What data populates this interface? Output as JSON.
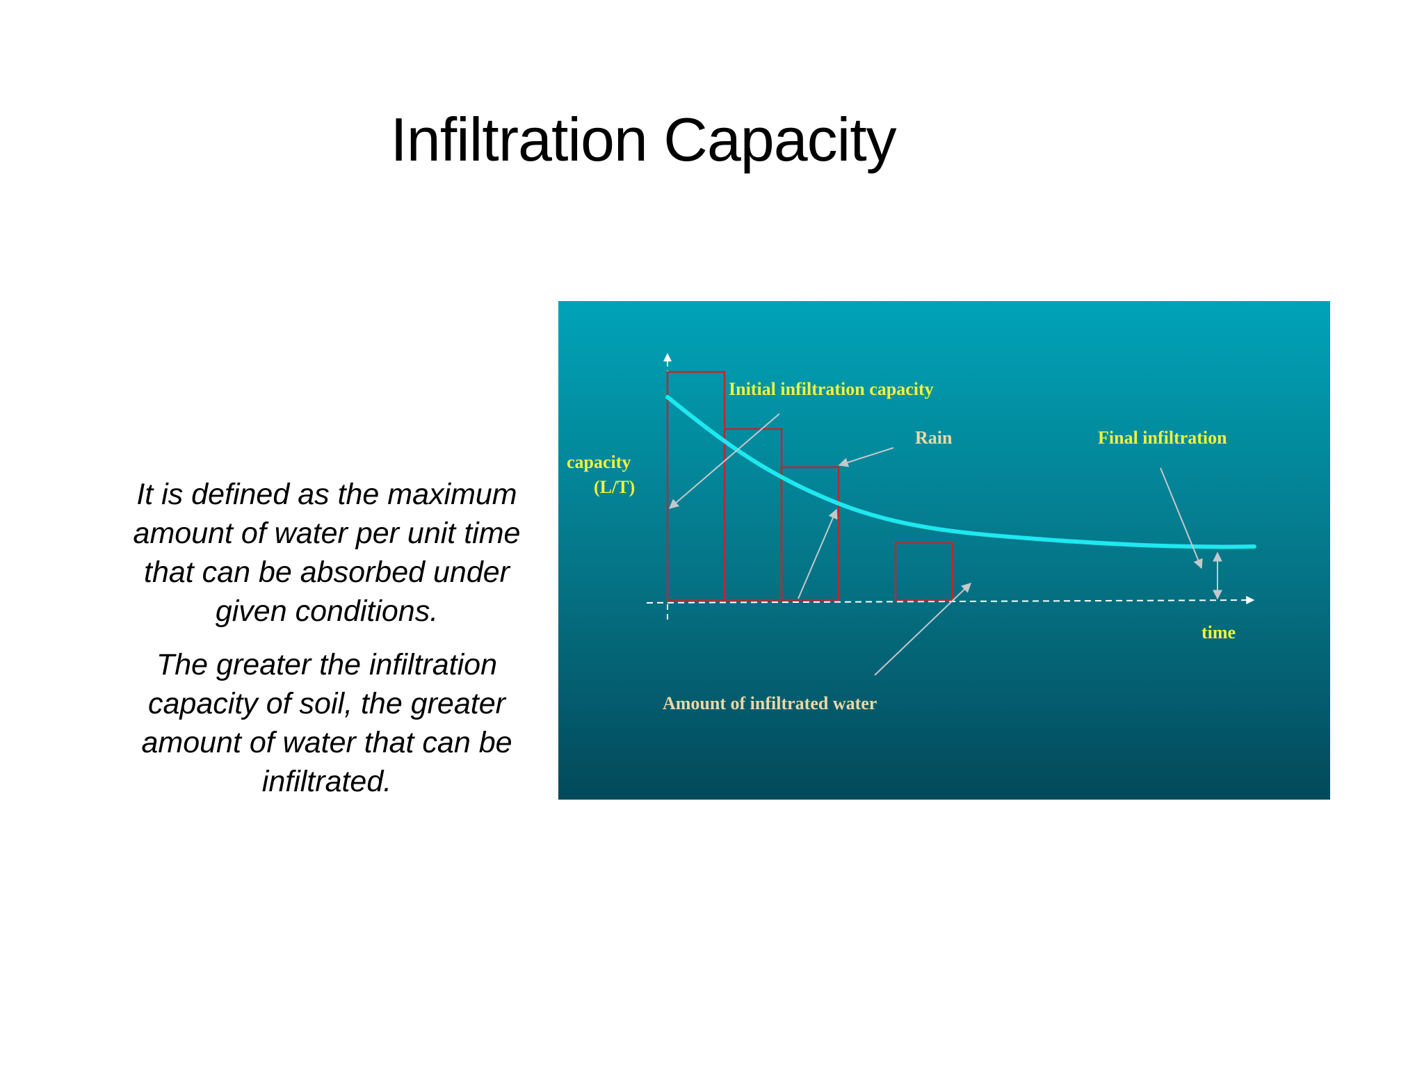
{
  "slide": {
    "title": "Infiltration Capacity",
    "paragraphs": [
      "It is defined as the maximum amount of water per unit time that can be absorbed under given conditions.",
      "The greater the infiltration capacity of soil, the greater amount of water that can be infiltrated."
    ]
  },
  "diagram": {
    "labels": {
      "initial": "Initial infiltration capacity",
      "rain": "Rain",
      "final": "Final infiltration",
      "capacity_line1": "capacity",
      "capacity_line2": "(L/T)",
      "time": "time",
      "amount": "Amount of infiltrated water"
    },
    "colors": {
      "background_top": "#00a3b8",
      "background_bottom": "#03495a",
      "curve": "#1ee8f0",
      "rain_bars": "#c0272d",
      "label_yellow": "#f2f23a",
      "label_tan": "#e8d9a8",
      "arrows": "#c4c8cc"
    }
  }
}
